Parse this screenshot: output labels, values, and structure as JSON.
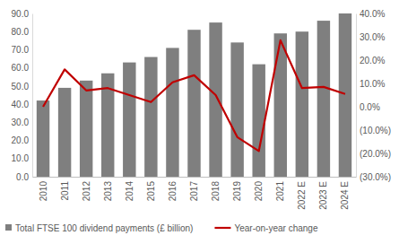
{
  "chart_data": {
    "type": "bar",
    "categories": [
      "2010",
      "2011",
      "2012",
      "2013",
      "2014",
      "2015",
      "2016",
      "2017",
      "2018",
      "2019",
      "2020",
      "2021",
      "2022 E",
      "2023 E",
      "2024 E"
    ],
    "series": [
      {
        "name": "Total FTSE 100 dividend payments (£ billion)",
        "type": "bar",
        "color": "#7f7f7f",
        "values": [
          42,
          49,
          53,
          57,
          63,
          66,
          71,
          81,
          85,
          74,
          62,
          79,
          80,
          86,
          90
        ]
      },
      {
        "name": "Year-on-year change",
        "type": "line",
        "color": "#c00000",
        "axis": "y2",
        "values": [
          0,
          16,
          7,
          8,
          5,
          2,
          10.5,
          13.5,
          5,
          -13,
          -19,
          28.5,
          8,
          8.5,
          5.5
        ]
      }
    ],
    "ylim": [
      0,
      90
    ],
    "yticks": [
      {
        "value": 0,
        "label": "0.0"
      },
      {
        "value": 10,
        "label": "10.0"
      },
      {
        "value": 20,
        "label": "20.0"
      },
      {
        "value": 30,
        "label": "30.0"
      },
      {
        "value": 40,
        "label": "40.0"
      },
      {
        "value": 50,
        "label": "50.0"
      },
      {
        "value": 60,
        "label": "60.0"
      },
      {
        "value": 70,
        "label": "70.0"
      },
      {
        "value": 80,
        "label": "80.0"
      },
      {
        "value": 90,
        "label": "90.0"
      }
    ],
    "y2lim": [
      -30,
      40
    ],
    "y2ticks": [
      {
        "value": -30,
        "label": "(30.0%)"
      },
      {
        "value": -20,
        "label": "(20.0%)"
      },
      {
        "value": -10,
        "label": "(10.0%)"
      },
      {
        "value": 0,
        "label": "0.0%"
      },
      {
        "value": 10,
        "label": "10.0%"
      },
      {
        "value": 20,
        "label": "20.0%"
      },
      {
        "value": 30,
        "label": "30.0%"
      },
      {
        "value": 40,
        "label": "40.0%"
      }
    ],
    "legend": "bottom",
    "grid": false
  }
}
